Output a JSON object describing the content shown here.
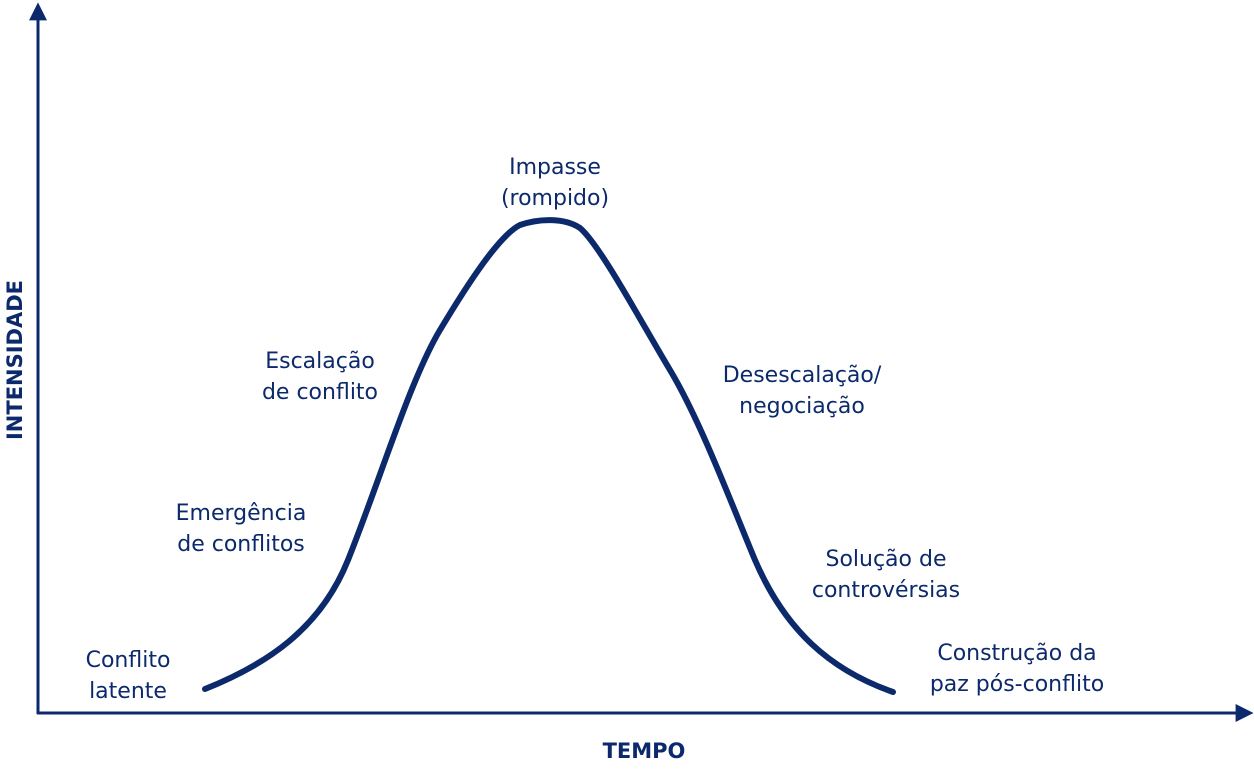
{
  "axes": {
    "x": "TEMPO",
    "y": "INTENSIDADE"
  },
  "stages": [
    {
      "lines": [
        "Conflito",
        "latente"
      ]
    },
    {
      "lines": [
        "Emergência",
        "de conflitos"
      ]
    },
    {
      "lines": [
        "Escalação",
        "de conflito"
      ]
    },
    {
      "lines": [
        "Impasse",
        "(rompido)"
      ]
    },
    {
      "lines": [
        "Desescalação/",
        "negociação"
      ]
    },
    {
      "lines": [
        "Solução de",
        "controvérsias"
      ]
    },
    {
      "lines": [
        "Construção da",
        "paz pós-conflito"
      ]
    }
  ]
}
